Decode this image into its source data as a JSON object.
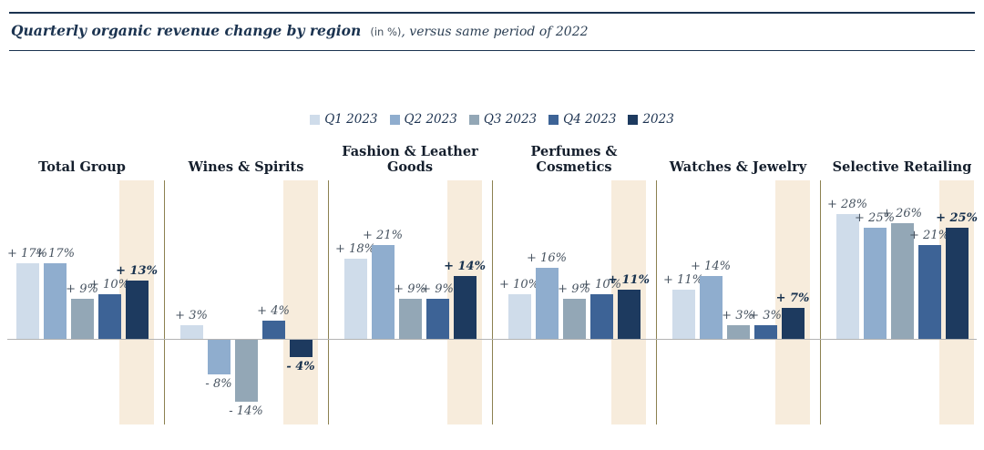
{
  "header": {
    "title_main": "Quarterly organic revenue change by region",
    "title_unit": "(in %)",
    "title_suffix": ", versus same period of 2022"
  },
  "chart_data": {
    "type": "bar",
    "title": "Quarterly organic revenue change by region (in %), versus same period of 2022",
    "legend_position": "top-center",
    "grid": false,
    "ylim": [
      -16,
      30
    ],
    "categories": [
      "Total Group",
      "Wines & Spirits",
      "Fashion & Leather Goods",
      "Perfumes & Cosmetics",
      "Watches & Jewelry",
      "Selective Retailing"
    ],
    "series": [
      {
        "name": "Q1 2023",
        "color": "#cfdcea",
        "values": [
          17,
          3,
          18,
          10,
          11,
          28
        ]
      },
      {
        "name": "Q2 2023",
        "color": "#8fadce",
        "values": [
          17,
          -8,
          21,
          16,
          14,
          25
        ]
      },
      {
        "name": "Q3 2023",
        "color": "#93a7b6",
        "values": [
          9,
          -14,
          9,
          9,
          3,
          26
        ]
      },
      {
        "name": "Q4 2023",
        "color": "#3d6396",
        "values": [
          10,
          4,
          9,
          10,
          3,
          21
        ]
      },
      {
        "name": "2023",
        "color": "#1d3a5f",
        "values": [
          13,
          -4,
          14,
          11,
          7,
          25
        ]
      }
    ],
    "label_prefix_positive": "+ ",
    "label_prefix_negative": "- ",
    "label_suffix": "%",
    "highlight_band_color": "#f7ecdc",
    "separator_color": "#8c8150",
    "baseline_color": "#b3b3b3"
  }
}
